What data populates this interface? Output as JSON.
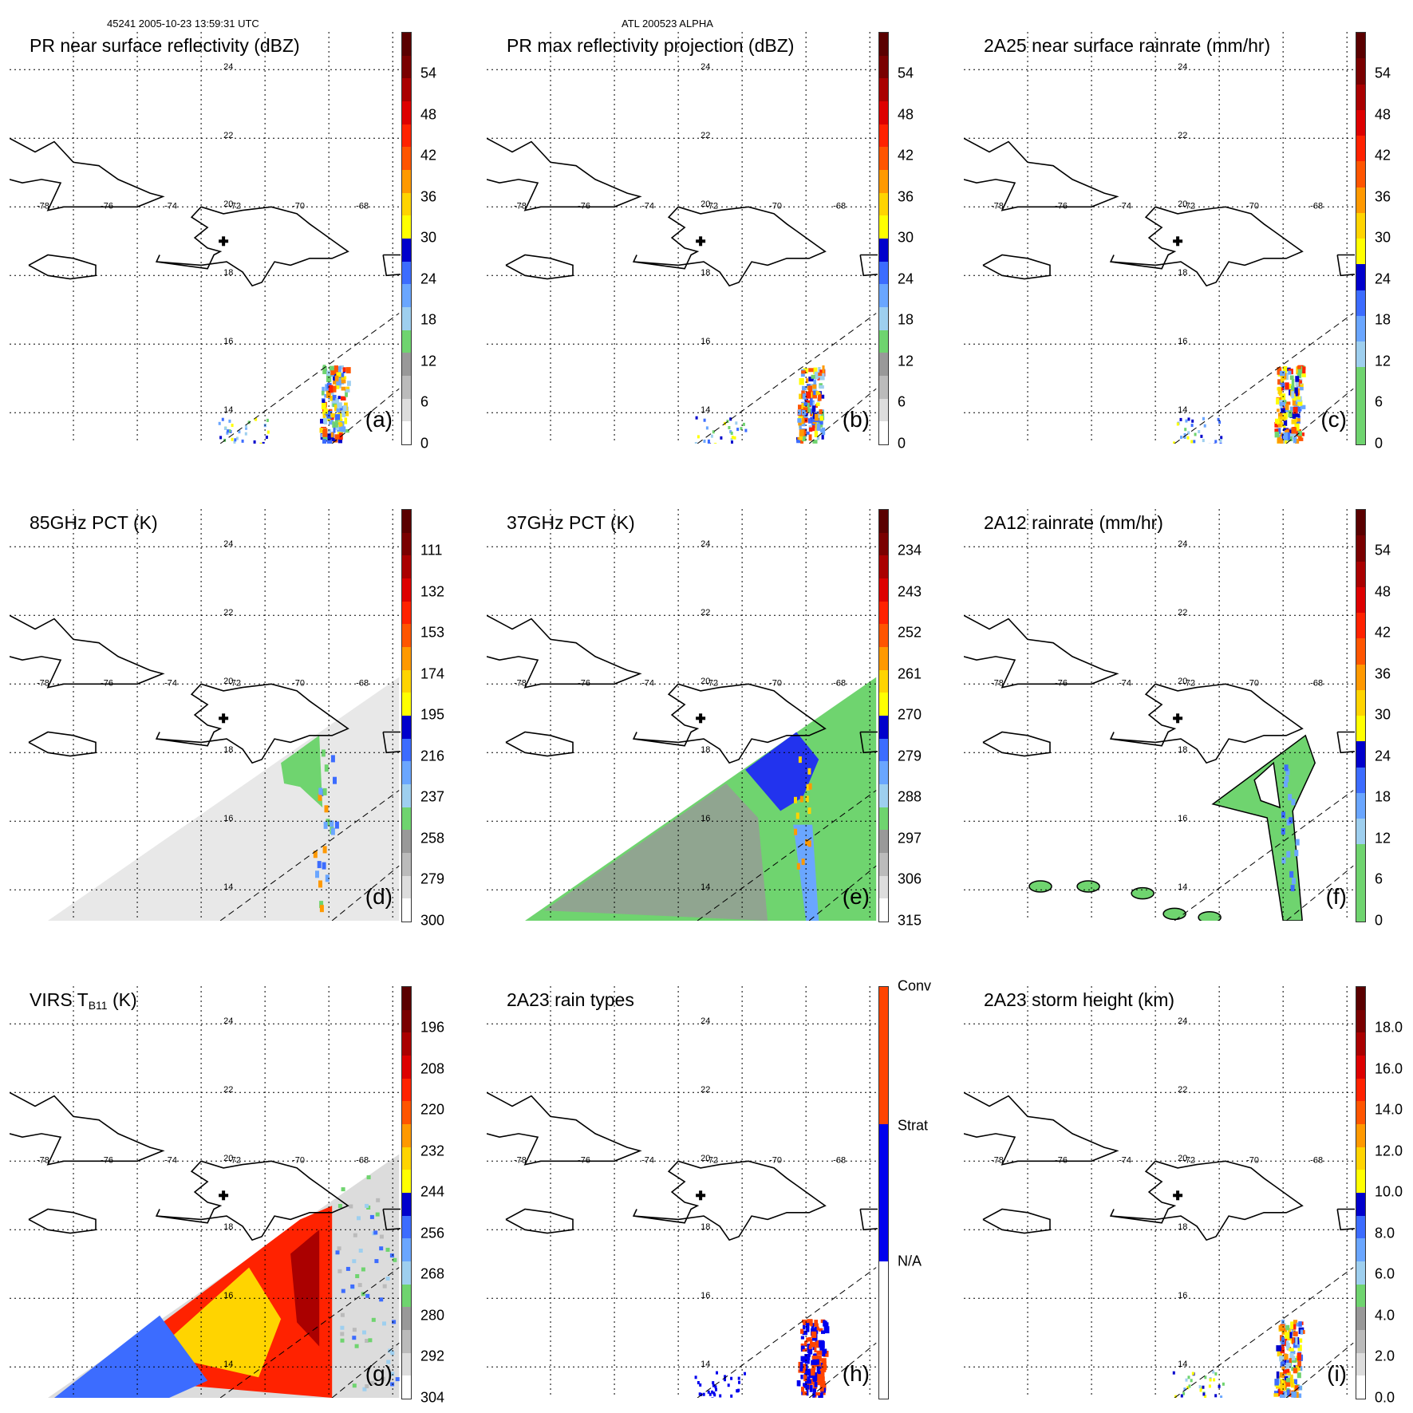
{
  "header": {
    "left": "45241 2005-10-23 13:59:31 UTC",
    "center": "ATL 200523 ALPHA"
  },
  "colors": {
    "red_scale": [
      "#ffffff",
      "#dddddd",
      "#bbbbbb",
      "#999999",
      "#6fd46f",
      "#9ecfef",
      "#6aa6ff",
      "#3c6cff",
      "#0000cc",
      "#ffff00",
      "#ffd400",
      "#ff9900",
      "#ff5500",
      "#ff2200",
      "#dd0000",
      "#aa0000",
      "#7a0000",
      "#5a0000"
    ],
    "rain_type": [
      "#ffffff",
      "#0000ee",
      "#ff4400"
    ]
  },
  "map": {
    "lon_labels": [
      "-78",
      "-76",
      "-74",
      "-72",
      "-70",
      "-68"
    ],
    "lat_labels": [
      "24",
      "22",
      "20",
      "18",
      "16",
      "14"
    ],
    "storm_center_marker": "plus-icon"
  },
  "panels": [
    {
      "id": "a",
      "title": "PR near surface reflectivity (dBZ)",
      "label": "(a)",
      "ticks": [
        "54",
        "48",
        "42",
        "36",
        "30",
        "24",
        "18",
        "12",
        "6",
        "0"
      ],
      "data_coverage": "pr_swath",
      "fill_mode": "pr"
    },
    {
      "id": "b",
      "title": "PR max reflectivity projection (dBZ)",
      "label": "(b)",
      "ticks": [
        "54",
        "48",
        "42",
        "36",
        "30",
        "24",
        "18",
        "12",
        "6",
        "0"
      ],
      "data_coverage": "pr_swath",
      "fill_mode": "pr"
    },
    {
      "id": "c",
      "title": "2A25 near surface rainrate (mm/hr)",
      "label": "(c)",
      "ticks": [
        "54",
        "48",
        "42",
        "36",
        "30",
        "24",
        "18",
        "12",
        "6",
        "0"
      ],
      "data_coverage": "pr_swath",
      "fill_mode": "pr"
    },
    {
      "id": "d",
      "title": "85GHz PCT (K)",
      "label": "(d)",
      "ticks": [
        "111",
        "132",
        "153",
        "174",
        "195",
        "216",
        "237",
        "258",
        "279",
        "300"
      ],
      "data_coverage": "tmi_swath",
      "fill_mode": "gray"
    },
    {
      "id": "e",
      "title": "37GHz PCT (K)",
      "label": "(e)",
      "ticks": [
        "234",
        "243",
        "252",
        "261",
        "270",
        "279",
        "288",
        "297",
        "306",
        "315"
      ],
      "data_coverage": "tmi_swath",
      "fill_mode": "green"
    },
    {
      "id": "f",
      "title": "2A12 rainrate (mm/hr)",
      "label": "(f)",
      "ticks": [
        "54",
        "48",
        "42",
        "36",
        "30",
        "24",
        "18",
        "12",
        "6",
        "0"
      ],
      "data_coverage": "tmi_swath",
      "fill_mode": "rain"
    },
    {
      "id": "g",
      "title_main": "VIRS T",
      "title_sub": "B11",
      "title_unit": " (K)",
      "label": "(g)",
      "ticks": [
        "196",
        "208",
        "220",
        "232",
        "244",
        "256",
        "268",
        "280",
        "292",
        "304"
      ],
      "data_coverage": "virs_swath",
      "fill_mode": "ir"
    },
    {
      "id": "h",
      "title": "2A23 rain types",
      "label": "(h)",
      "ticks": [
        "Conv",
        "Strat",
        "N/A"
      ],
      "data_coverage": "pr_swath",
      "fill_mode": "type"
    },
    {
      "id": "i",
      "title": "2A23 storm height (km)",
      "label": "(i)",
      "ticks": [
        "18.0",
        "16.0",
        "14.0",
        "12.0",
        "10.0",
        "8.0",
        "6.0",
        "4.0",
        "2.0",
        "0.0"
      ],
      "data_coverage": "pr_swath",
      "fill_mode": "pr"
    }
  ]
}
